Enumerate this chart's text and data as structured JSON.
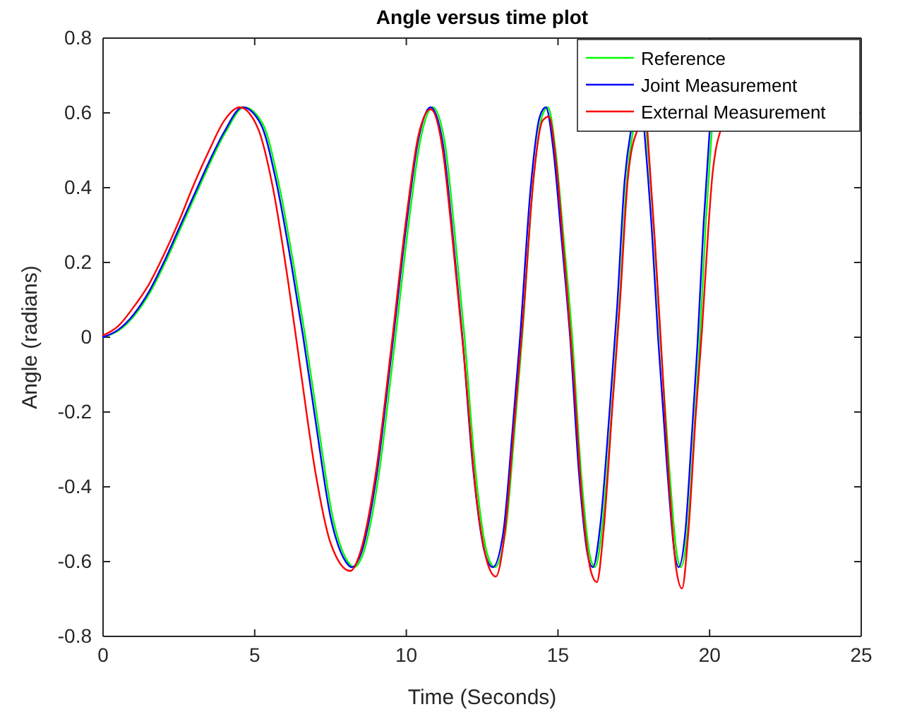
{
  "chart_data": {
    "type": "line",
    "title": "Angle versus time plot",
    "xlabel": "Time (Seconds)",
    "ylabel": "Angle (radians)",
    "xlim": [
      0,
      25
    ],
    "ylim": [
      -0.8,
      0.8
    ],
    "xticks": [
      0,
      5,
      10,
      15,
      20,
      25
    ],
    "yticks": [
      -0.8,
      -0.6,
      -0.4,
      -0.2,
      0,
      0.2,
      0.4,
      0.6,
      0.8
    ],
    "grid": false,
    "legend": "top right",
    "marker": "none",
    "line_style": "solid",
    "series": [
      {
        "name": "Reference",
        "color": "#00ff00",
        "x": [
          0,
          0.55,
          1.05,
          1.55,
          2.05,
          2.55,
          3.05,
          3.55,
          4.05,
          4.65,
          5.27,
          5.77,
          6.27,
          6.67,
          7.07,
          7.57,
          8.07,
          8.27,
          8.57,
          9.07,
          9.57,
          10.07,
          10.47,
          10.87,
          11.27,
          11.57,
          11.92,
          12.27,
          12.67,
          12.92,
          13.27,
          13.57,
          13.82,
          14.17,
          14.47,
          14.67,
          14.92,
          15.17,
          15.47,
          15.77,
          16.07,
          16.22,
          16.47,
          16.77,
          17.02,
          17.27,
          17.47,
          17.67,
          17.92,
          18.17,
          18.37,
          18.67,
          18.92,
          19.05,
          19.27,
          19.47,
          19.67,
          19.87,
          20.07
        ],
        "values": [
          0,
          0.02,
          0.06,
          0.12,
          0.2,
          0.29,
          0.38,
          0.47,
          0.55,
          0.615,
          0.57,
          0.42,
          0.2,
          0,
          -0.22,
          -0.48,
          -0.6,
          -0.615,
          -0.58,
          -0.38,
          -0.05,
          0.3,
          0.53,
          0.615,
          0.52,
          0.3,
          0,
          -0.35,
          -0.58,
          -0.615,
          -0.52,
          -0.25,
          0,
          0.4,
          0.59,
          0.615,
          0.5,
          0.28,
          0,
          -0.37,
          -0.59,
          -0.615,
          -0.5,
          -0.2,
          0.08,
          0.42,
          0.55,
          null,
          0.55,
          0.28,
          0,
          -0.35,
          -0.58,
          -0.615,
          -0.52,
          -0.28,
          -0.02,
          0.3,
          0.55
        ]
      },
      {
        "name": "Joint Measurement",
        "color": "#0000ff",
        "x": [
          0,
          0.5,
          1,
          1.5,
          2,
          2.5,
          3,
          3.5,
          4,
          4.6,
          5.2,
          5.7,
          6.2,
          6.6,
          7,
          7.5,
          8,
          8.2,
          8.5,
          9,
          9.5,
          10,
          10.4,
          10.8,
          11.2,
          11.5,
          11.85,
          12.2,
          12.6,
          12.85,
          13.2,
          13.5,
          13.75,
          14.1,
          14.4,
          14.6,
          14.85,
          15.1,
          15.4,
          15.7,
          16,
          16.15,
          16.4,
          16.7,
          16.95,
          17.2,
          17.4,
          17.6,
          17.85,
          18.1,
          18.3,
          18.6,
          18.85,
          18.98,
          19.2,
          19.4,
          19.6,
          19.8,
          20.0
        ],
        "values": [
          0,
          0.02,
          0.06,
          0.12,
          0.2,
          0.29,
          0.38,
          0.47,
          0.55,
          0.615,
          0.57,
          0.42,
          0.2,
          0,
          -0.22,
          -0.48,
          -0.6,
          -0.615,
          -0.58,
          -0.38,
          -0.05,
          0.3,
          0.53,
          0.615,
          0.52,
          0.3,
          0,
          -0.35,
          -0.58,
          -0.615,
          -0.52,
          -0.25,
          0,
          0.4,
          0.59,
          0.615,
          0.5,
          0.28,
          0,
          -0.37,
          -0.59,
          -0.615,
          -0.5,
          -0.2,
          0.08,
          0.42,
          0.55,
          null,
          0.55,
          0.28,
          0,
          -0.35,
          -0.58,
          -0.615,
          -0.52,
          -0.28,
          -0.02,
          0.3,
          0.55
        ]
      },
      {
        "name": "External Measurement",
        "color": "#ff0000",
        "x": [
          0,
          0.5,
          1,
          1.5,
          2,
          2.5,
          3,
          3.5,
          4,
          4.5,
          5.1,
          5.6,
          6.1,
          6.5,
          7,
          7.5,
          8.15,
          8.5,
          9,
          9.5,
          10,
          10.4,
          10.8,
          11.2,
          11.5,
          11.9,
          12.3,
          12.7,
          12.95,
          13.25,
          13.55,
          13.85,
          14.2,
          14.5,
          14.7,
          14.95,
          15.2,
          15.5,
          15.8,
          16.1,
          16.28,
          16.5,
          16.8,
          17.05,
          17.3,
          17.6,
          17.78,
          17.95,
          18.2,
          18.4,
          18.65,
          18.9,
          19.09,
          19.3,
          19.55,
          19.75,
          19.95,
          20.1,
          20.2,
          20.35
        ],
        "values": [
          0.005,
          0.03,
          0.08,
          0.14,
          0.22,
          0.31,
          0.41,
          0.5,
          0.58,
          0.615,
          0.56,
          0.4,
          0.15,
          -0.08,
          -0.36,
          -0.55,
          -0.625,
          -0.57,
          -0.36,
          -0.03,
          0.32,
          0.54,
          0.61,
          0.5,
          0.28,
          -0.05,
          -0.42,
          -0.61,
          -0.64,
          -0.52,
          -0.24,
          0.05,
          0.43,
          0.58,
          0.59,
          0.46,
          0.22,
          -0.08,
          -0.44,
          -0.63,
          -0.655,
          -0.52,
          -0.18,
          0.1,
          0.42,
          0.55,
          null,
          0.55,
          0.25,
          -0.02,
          -0.37,
          -0.62,
          -0.672,
          -0.52,
          -0.2,
          0.02,
          0.28,
          0.44,
          0.5,
          0.55
        ]
      }
    ]
  }
}
